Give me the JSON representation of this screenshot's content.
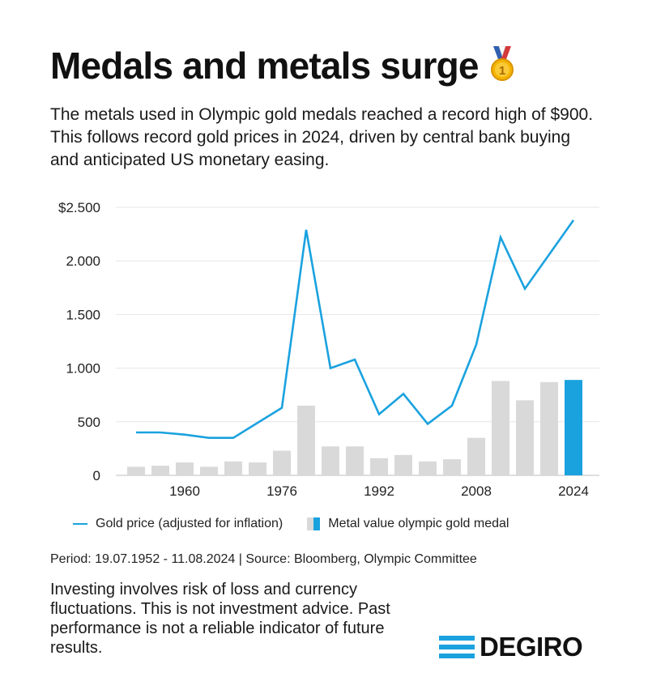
{
  "header": {
    "title": "Medals and metals surge",
    "subtitle": "The metals used in Olympic gold medals reached a record high of $900. This follows record gold prices in 2024, driven by central bank buying and anticipated US monetary easing."
  },
  "chart_data": {
    "type": "bar",
    "ylim": [
      0,
      2500
    ],
    "yticks": [
      0,
      500,
      1000,
      1500,
      2000,
      2500
    ],
    "ytick_labels": [
      "0",
      "500",
      "1.000",
      "1.500",
      "2.000",
      "$2.500"
    ],
    "xtick_labels": [
      "1960",
      "1976",
      "1992",
      "2008",
      "2024"
    ],
    "xtick_years": [
      1960,
      1976,
      1992,
      2008,
      2024
    ],
    "grid": true,
    "series": [
      {
        "name": "Gold price (adjusted for inflation)",
        "type": "line",
        "color": "#1aa2df",
        "x": [
          1952,
          1956,
          1960,
          1964,
          1968,
          1972,
          1976,
          1980,
          1984,
          1988,
          1992,
          1996,
          2000,
          2004,
          2008,
          2012,
          2016,
          2020,
          2024
        ],
        "values": [
          400,
          400,
          380,
          350,
          350,
          490,
          630,
          2290,
          1000,
          1080,
          570,
          760,
          480,
          650,
          1220,
          2220,
          1740,
          2060,
          2380
        ]
      },
      {
        "name": "Metal value olympic gold medal",
        "type": "bar",
        "color": "#d9d9d9",
        "highlight_color": "#1aa2df",
        "x": [
          1952,
          1956,
          1960,
          1964,
          1968,
          1972,
          1976,
          1980,
          1984,
          1988,
          1992,
          1996,
          2000,
          2004,
          2008,
          2012,
          2016,
          2020,
          2024
        ],
        "values": [
          80,
          90,
          120,
          80,
          130,
          120,
          230,
          650,
          270,
          270,
          160,
          190,
          130,
          150,
          350,
          880,
          700,
          870,
          890
        ]
      }
    ]
  },
  "legend": {
    "line_label": "Gold price (adjusted for inflation)",
    "bar_label": "Metal value olympic gold medal"
  },
  "footer": {
    "period": "Period: 19.07.1952 - 11.08.2024 | Source: Bloomberg, Olympic Committee",
    "disclaimer": "Investing involves risk of loss and currency fluctuations. This is not investment advice. Past performance is not a reliable indicator of future results.",
    "logo": "DEGIRO"
  }
}
